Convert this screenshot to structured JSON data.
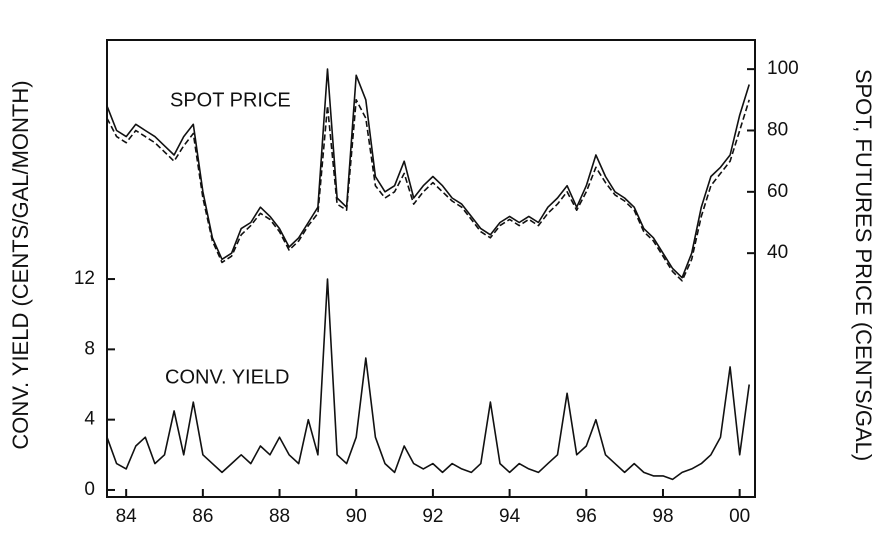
{
  "chart_data": {
    "type": "line",
    "y_label": "CONV. YIELD (CENTS/GAL/MONTH)",
    "y2_label": "SPOT, FUTURES PRICE (CENTS/GAL)",
    "x": [
      83.5,
      83.75,
      84,
      84.25,
      84.5,
      84.75,
      85,
      85.25,
      85.5,
      85.75,
      86,
      86.25,
      86.5,
      86.75,
      87,
      87.25,
      87.5,
      87.75,
      88,
      88.25,
      88.5,
      88.75,
      89,
      89.25,
      89.5,
      89.75,
      90,
      90.25,
      90.5,
      90.75,
      91,
      91.25,
      91.5,
      91.75,
      92,
      92.25,
      92.5,
      92.75,
      93,
      93.25,
      93.5,
      93.75,
      94,
      94.25,
      94.5,
      94.75,
      95,
      95.25,
      95.5,
      95.75,
      96,
      96.25,
      96.5,
      96.75,
      97,
      97.25,
      97.5,
      97.75,
      98,
      98.25,
      98.5,
      98.75,
      99,
      99.25,
      99.5,
      99.75,
      100,
      100.25
    ],
    "series": [
      {
        "name": "SPOT PRICE",
        "color": "#111111",
        "axis": "y2",
        "dash": false,
        "values": [
          88,
          80,
          78,
          82,
          80,
          78,
          75,
          72,
          78,
          82,
          60,
          45,
          38,
          40,
          48,
          50,
          55,
          52,
          48,
          42,
          45,
          50,
          55,
          100,
          58,
          55,
          98,
          90,
          65,
          60,
          62,
          70,
          58,
          62,
          65,
          62,
          58,
          56,
          52,
          48,
          46,
          50,
          52,
          50,
          52,
          50,
          55,
          58,
          62,
          55,
          62,
          72,
          65,
          60,
          58,
          55,
          48,
          45,
          40,
          35,
          32,
          40,
          55,
          65,
          68,
          72,
          85,
          95
        ]
      },
      {
        "color": "#111111",
        "axis": "y2",
        "dash": true,
        "values": [
          84,
          78,
          76,
          80,
          78,
          76,
          73,
          70,
          75,
          79,
          58,
          44,
          37,
          39,
          46,
          49,
          53,
          51,
          47,
          41,
          44,
          49,
          53,
          88,
          56,
          54,
          90,
          84,
          62,
          58,
          60,
          66,
          56,
          60,
          63,
          60,
          57,
          55,
          51,
          47,
          45,
          49,
          51,
          49,
          51,
          49,
          53,
          56,
          60,
          54,
          60,
          68,
          63,
          59,
          57,
          54,
          47,
          44,
          39,
          34,
          31,
          38,
          52,
          62,
          66,
          70,
          80,
          90
        ]
      },
      {
        "name": "CONV. YIELD",
        "color": "#111111",
        "axis": "y",
        "dash": false,
        "values": [
          3,
          1.5,
          1.2,
          2.5,
          3,
          1.5,
          2,
          4.5,
          2,
          5,
          2,
          1.5,
          1,
          1.5,
          2,
          1.5,
          2.5,
          2,
          3,
          2,
          1.5,
          4,
          2,
          12,
          2,
          1.5,
          3,
          7.5,
          3,
          1.5,
          1,
          2.5,
          1.5,
          1.2,
          1.5,
          1,
          1.5,
          1.2,
          1,
          1.5,
          5,
          1.5,
          1,
          1.5,
          1.2,
          1,
          1.5,
          2,
          5.5,
          2,
          2.5,
          4,
          2,
          1.5,
          1,
          1.5,
          1,
          0.8,
          0.8,
          0.6,
          1,
          1.2,
          1.5,
          2,
          3,
          7,
          2,
          6
        ]
      }
    ],
    "xlim": [
      83.5,
      100.4
    ],
    "xticks": [
      84,
      86,
      88,
      90,
      92,
      94,
      96,
      98,
      {
        "value": 100,
        "label": "00"
      }
    ],
    "ylim": [
      -0.4,
      25.6
    ],
    "yticks": [
      0,
      4,
      8,
      12
    ],
    "y2lim": [
      -39.5,
      109.5
    ],
    "y2ticks": [
      40,
      60,
      80,
      100
    ]
  }
}
